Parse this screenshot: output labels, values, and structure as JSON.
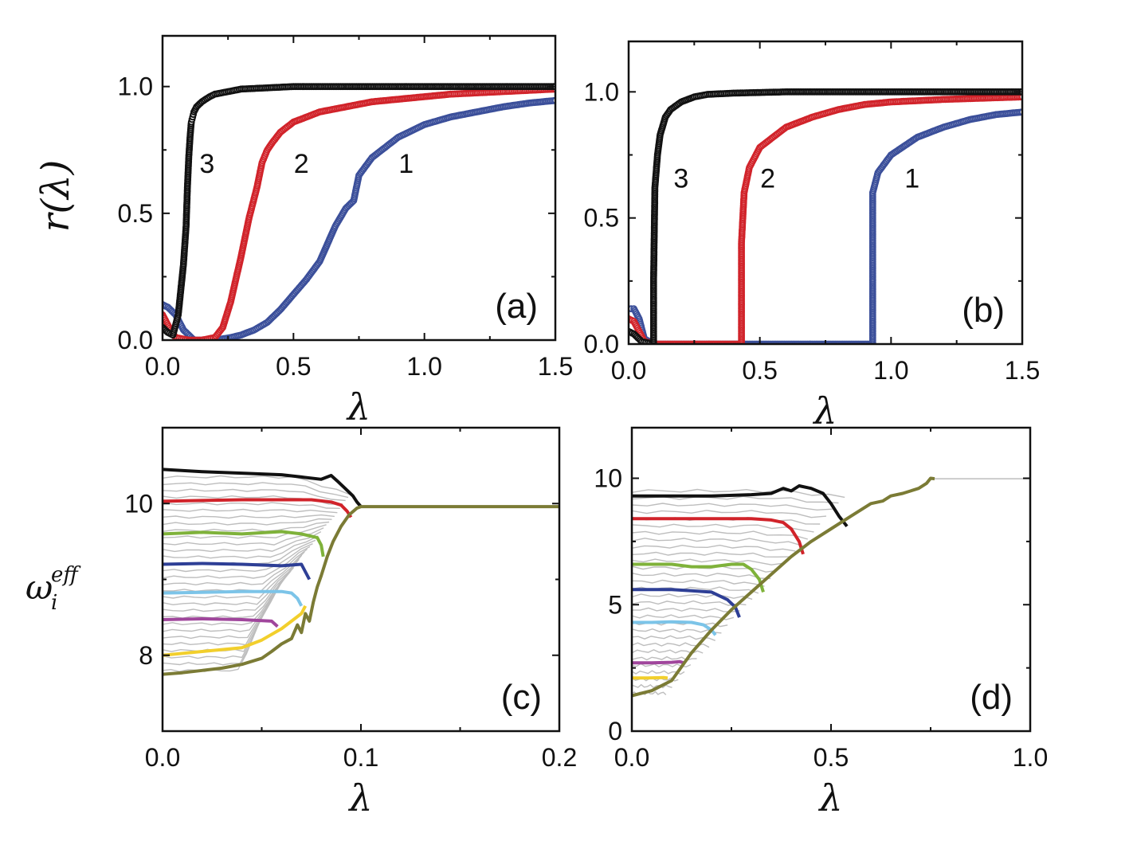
{
  "colors": {
    "black": "#111111",
    "red": "#d1232a",
    "blue": "#3b4f9a",
    "green": "#7fb23a",
    "navy": "#2e3f96",
    "cyan": "#7cc4e8",
    "magenta": "#a0469c",
    "yellow": "#f2cf2c",
    "olive": "#7b7b35",
    "gray": "#bdbdbd"
  },
  "chart_data": [
    {
      "id": "a",
      "type": "line",
      "panel_label": "(a)",
      "xlabel": "λ",
      "ylabel": "r(λ)",
      "xlim": [
        0,
        1.5
      ],
      "ylim": [
        0,
        1.2
      ],
      "xticks": [
        "0.0",
        "0.5",
        "1.0",
        "1.5"
      ],
      "yticks": [
        "0.0",
        "0.5",
        "1.0"
      ],
      "series": [
        {
          "name": "1",
          "color": "#3b4f9a",
          "x": [
            0.0,
            0.02,
            0.05,
            0.08,
            0.12,
            0.2,
            0.26,
            0.3,
            0.35,
            0.4,
            0.45,
            0.5,
            0.55,
            0.6,
            0.63,
            0.66,
            0.7,
            0.73,
            0.74,
            0.75,
            0.8,
            0.9,
            1.0,
            1.1,
            1.2,
            1.3,
            1.4,
            1.5
          ],
          "y": [
            0.14,
            0.13,
            0.1,
            0.04,
            0.0,
            0.0,
            0.01,
            0.02,
            0.04,
            0.07,
            0.12,
            0.18,
            0.24,
            0.31,
            0.38,
            0.45,
            0.52,
            0.55,
            0.6,
            0.65,
            0.72,
            0.8,
            0.85,
            0.88,
            0.9,
            0.92,
            0.935,
            0.945
          ]
        },
        {
          "name": "2",
          "color": "#d1232a",
          "x": [
            0.0,
            0.01,
            0.03,
            0.05,
            0.1,
            0.15,
            0.2,
            0.23,
            0.26,
            0.3,
            0.33,
            0.36,
            0.38,
            0.4,
            0.42,
            0.45,
            0.5,
            0.6,
            0.7,
            0.8,
            0.9,
            1.0,
            1.1,
            1.2,
            1.3,
            1.4,
            1.5
          ],
          "y": [
            0.1,
            0.08,
            0.04,
            0.01,
            0.0,
            0.0,
            0.01,
            0.05,
            0.15,
            0.33,
            0.48,
            0.6,
            0.7,
            0.75,
            0.78,
            0.82,
            0.86,
            0.9,
            0.92,
            0.94,
            0.95,
            0.96,
            0.97,
            0.975,
            0.98,
            0.985,
            0.99
          ]
        },
        {
          "name": "3",
          "color": "#111111",
          "x": [
            0.0,
            0.02,
            0.04,
            0.06,
            0.08,
            0.09,
            0.095,
            0.1,
            0.105,
            0.11,
            0.115,
            0.12,
            0.13,
            0.15,
            0.18,
            0.2,
            0.25,
            0.3,
            0.4,
            0.5,
            0.7,
            1.0,
            1.5
          ],
          "y": [
            0.05,
            0.03,
            0.02,
            0.1,
            0.3,
            0.45,
            0.6,
            0.72,
            0.8,
            0.86,
            0.88,
            0.9,
            0.92,
            0.94,
            0.96,
            0.97,
            0.98,
            0.99,
            0.995,
            1.0,
            1.0,
            1.0,
            1.0
          ]
        }
      ],
      "curve_labels": [
        {
          "text": "1",
          "x": 0.93,
          "y": 0.66
        },
        {
          "text": "2",
          "x": 0.53,
          "y": 0.66
        },
        {
          "text": "3",
          "x": 0.17,
          "y": 0.66
        }
      ]
    },
    {
      "id": "b",
      "type": "line",
      "panel_label": "(b)",
      "xlabel": "λ",
      "ylabel": "",
      "xlim": [
        0,
        1.5
      ],
      "ylim": [
        0,
        1.2
      ],
      "xticks": [
        "0.0",
        "0.5",
        "1.0",
        "1.5"
      ],
      "yticks": [
        "0.0",
        "0.5",
        "1.0"
      ],
      "series": [
        {
          "name": "1",
          "color": "#3b4f9a",
          "x": [
            0.0,
            0.02,
            0.04,
            0.06,
            0.1,
            0.5,
            0.93,
            0.93,
            0.95,
            1.0,
            1.1,
            1.2,
            1.3,
            1.4,
            1.5
          ],
          "y": [
            0.14,
            0.14,
            0.1,
            0.02,
            0.0,
            0.0,
            0.0,
            0.6,
            0.68,
            0.75,
            0.82,
            0.86,
            0.89,
            0.91,
            0.92
          ]
        },
        {
          "name": "2",
          "color": "#d1232a",
          "x": [
            0.0,
            0.02,
            0.04,
            0.06,
            0.1,
            0.43,
            0.43,
            0.44,
            0.46,
            0.5,
            0.6,
            0.7,
            0.8,
            0.9,
            1.0,
            1.2,
            1.5
          ],
          "y": [
            0.1,
            0.09,
            0.05,
            0.01,
            0.0,
            0.0,
            0.4,
            0.6,
            0.7,
            0.78,
            0.86,
            0.9,
            0.93,
            0.95,
            0.96,
            0.97,
            0.98
          ]
        },
        {
          "name": "3",
          "color": "#111111",
          "x": [
            0.0,
            0.02,
            0.05,
            0.095,
            0.095,
            0.1,
            0.11,
            0.12,
            0.14,
            0.16,
            0.2,
            0.25,
            0.3,
            0.4,
            0.6,
            1.0,
            1.5
          ],
          "y": [
            0.05,
            0.04,
            0.01,
            0.0,
            0.25,
            0.62,
            0.75,
            0.83,
            0.9,
            0.93,
            0.96,
            0.98,
            0.99,
            0.995,
            1.0,
            1.0,
            1.0
          ]
        }
      ],
      "curve_labels": [
        {
          "text": "1",
          "x": 1.08,
          "y": 0.62
        },
        {
          "text": "2",
          "x": 0.53,
          "y": 0.62
        },
        {
          "text": "3",
          "x": 0.2,
          "y": 0.62
        }
      ]
    },
    {
      "id": "c",
      "type": "line",
      "panel_label": "(c)",
      "xlabel": "λ",
      "ylabel": "ω_i^eff",
      "ylabel_base": "ω",
      "ylabel_sub": "i",
      "ylabel_sup": "eff",
      "xlim": [
        0,
        0.2
      ],
      "ylim": [
        7.0,
        11.0
      ],
      "xticks": [
        "0.0",
        "0.1",
        "0.2"
      ],
      "yticks": [
        "8",
        "10"
      ],
      "background_lines": 30,
      "series": [
        {
          "name": "black",
          "color": "#111111",
          "x": [
            0.0,
            0.02,
            0.04,
            0.06,
            0.07,
            0.08,
            0.085,
            0.088,
            0.09,
            0.092,
            0.094,
            0.096,
            0.098,
            0.1
          ],
          "y": [
            10.45,
            10.42,
            10.4,
            10.38,
            10.35,
            10.32,
            10.37,
            10.3,
            10.25,
            10.2,
            10.15,
            10.1,
            10.02,
            9.96
          ]
        },
        {
          "name": "red",
          "color": "#d1232a",
          "x": [
            0.0,
            0.02,
            0.04,
            0.06,
            0.075,
            0.085,
            0.09,
            0.093,
            0.095
          ],
          "y": [
            10.03,
            10.04,
            10.05,
            10.05,
            10.05,
            10.02,
            9.98,
            9.9,
            9.82
          ]
        },
        {
          "name": "green",
          "color": "#7fb23a",
          "x": [
            0.0,
            0.02,
            0.04,
            0.06,
            0.07,
            0.078,
            0.08,
            0.081
          ],
          "y": [
            9.6,
            9.62,
            9.6,
            9.63,
            9.6,
            9.55,
            9.45,
            9.3
          ]
        },
        {
          "name": "navy",
          "color": "#2e3f96",
          "x": [
            0.0,
            0.02,
            0.04,
            0.06,
            0.07,
            0.072,
            0.074
          ],
          "y": [
            9.2,
            9.21,
            9.2,
            9.18,
            9.2,
            9.1,
            9.0
          ]
        },
        {
          "name": "cyan",
          "color": "#7cc4e8",
          "x": [
            0.0,
            0.02,
            0.04,
            0.06,
            0.065,
            0.068,
            0.07
          ],
          "y": [
            8.82,
            8.83,
            8.84,
            8.84,
            8.82,
            8.75,
            8.65
          ]
        },
        {
          "name": "magenta",
          "color": "#a0469c",
          "x": [
            0.0,
            0.02,
            0.04,
            0.055,
            0.058
          ],
          "y": [
            8.47,
            8.48,
            8.47,
            8.45,
            8.38
          ]
        },
        {
          "name": "yellow",
          "color": "#f2cf2c",
          "x": [
            0.0,
            0.02,
            0.04,
            0.05,
            0.06,
            0.065,
            0.07,
            0.072
          ],
          "y": [
            8.0,
            8.05,
            8.1,
            8.2,
            8.35,
            8.45,
            8.55,
            8.65
          ]
        },
        {
          "name": "olive",
          "color": "#7b7b35",
          "x": [
            0.0,
            0.01,
            0.02,
            0.03,
            0.04,
            0.05,
            0.055,
            0.06,
            0.065,
            0.068,
            0.07,
            0.072,
            0.074,
            0.076,
            0.078,
            0.08,
            0.083,
            0.086,
            0.09,
            0.094,
            0.098,
            0.1,
            0.12,
            0.15,
            0.2
          ],
          "y": [
            7.75,
            7.77,
            7.8,
            7.83,
            7.88,
            7.96,
            8.05,
            8.15,
            8.22,
            8.4,
            8.3,
            8.55,
            8.45,
            8.7,
            8.9,
            9.05,
            9.3,
            9.5,
            9.7,
            9.85,
            9.94,
            9.96,
            9.96,
            9.96,
            9.96
          ]
        }
      ]
    },
    {
      "id": "d",
      "type": "line",
      "panel_label": "(d)",
      "xlabel": "λ",
      "ylabel": "",
      "xlim": [
        0,
        1.0
      ],
      "ylim": [
        0,
        12
      ],
      "xticks": [
        "0.0",
        "0.5",
        "1.0"
      ],
      "yticks": [
        "0",
        "5",
        "10"
      ],
      "background_lines": 30,
      "series": [
        {
          "name": "black",
          "color": "#111111",
          "x": [
            0.0,
            0.1,
            0.2,
            0.3,
            0.35,
            0.38,
            0.4,
            0.42,
            0.45,
            0.48,
            0.5,
            0.52,
            0.54
          ],
          "y": [
            9.3,
            9.3,
            9.3,
            9.35,
            9.4,
            9.6,
            9.5,
            9.7,
            9.6,
            9.4,
            9.0,
            8.5,
            8.1
          ]
        },
        {
          "name": "red",
          "color": "#d1232a",
          "x": [
            0.0,
            0.1,
            0.2,
            0.3,
            0.35,
            0.38,
            0.4,
            0.42,
            0.43
          ],
          "y": [
            8.4,
            8.4,
            8.4,
            8.4,
            8.35,
            8.25,
            8.0,
            7.5,
            7.0
          ]
        },
        {
          "name": "green",
          "color": "#7fb23a",
          "x": [
            0.0,
            0.05,
            0.1,
            0.15,
            0.2,
            0.25,
            0.28,
            0.3,
            0.32,
            0.33
          ],
          "y": [
            6.6,
            6.6,
            6.6,
            6.5,
            6.5,
            6.6,
            6.6,
            6.4,
            6.0,
            5.5
          ]
        },
        {
          "name": "navy",
          "color": "#2e3f96",
          "x": [
            0.0,
            0.05,
            0.1,
            0.15,
            0.2,
            0.24,
            0.26,
            0.27
          ],
          "y": [
            5.6,
            5.6,
            5.6,
            5.55,
            5.5,
            5.2,
            4.9,
            4.5
          ]
        },
        {
          "name": "cyan",
          "color": "#7cc4e8",
          "x": [
            0.0,
            0.05,
            0.1,
            0.15,
            0.18,
            0.2,
            0.21
          ],
          "y": [
            4.3,
            4.3,
            4.32,
            4.3,
            4.2,
            4.0,
            3.8
          ]
        },
        {
          "name": "magenta",
          "color": "#a0469c",
          "x": [
            0.0,
            0.05,
            0.1,
            0.12,
            0.13
          ],
          "y": [
            2.7,
            2.7,
            2.72,
            2.75,
            2.7
          ]
        },
        {
          "name": "yellow",
          "color": "#f2cf2c",
          "x": [
            0.0,
            0.04,
            0.08,
            0.09
          ],
          "y": [
            2.1,
            2.1,
            2.12,
            2.1
          ]
        },
        {
          "name": "olive",
          "color": "#7b7b35",
          "x": [
            0.0,
            0.05,
            0.1,
            0.15,
            0.2,
            0.25,
            0.3,
            0.35,
            0.4,
            0.45,
            0.5,
            0.55,
            0.6,
            0.63,
            0.65,
            0.68,
            0.7,
            0.72,
            0.74,
            0.75,
            0.76
          ],
          "y": [
            1.4,
            1.6,
            2.0,
            3.1,
            4.0,
            4.8,
            5.5,
            6.2,
            6.9,
            7.5,
            8.0,
            8.5,
            9.0,
            9.1,
            9.3,
            9.4,
            9.5,
            9.6,
            9.8,
            10.0,
            9.98
          ]
        },
        {
          "name": "gray-tail",
          "color": "#bdbdbd",
          "x": [
            0.76,
            1.0
          ],
          "y": [
            9.98,
            9.98
          ]
        }
      ]
    }
  ]
}
